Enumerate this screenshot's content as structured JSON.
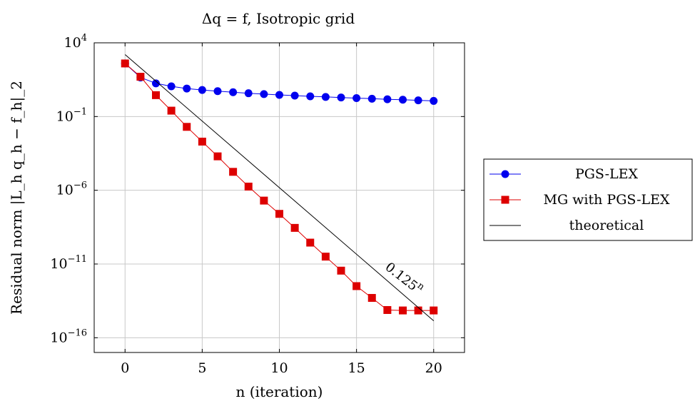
{
  "chart_data": {
    "type": "line",
    "title": "Δq = f, Isotropic grid",
    "xlabel": "n (iteration)",
    "ylabel": "Residual norm |L_h q_h − f_h|_2",
    "y_scale": "log",
    "xlim": [
      -2,
      22
    ],
    "ylim_exponent": [
      -17,
      4
    ],
    "x_ticks": [
      0,
      5,
      10,
      15,
      20
    ],
    "y_ticks_exponent": [
      -16,
      -11,
      -6,
      -1,
      4
    ],
    "y_tick_base": "10",
    "grid": true,
    "legend_position": "outside-right",
    "series": [
      {
        "name": "PGS-LEX",
        "color": "#0000ee",
        "marker": "circle",
        "x": [
          0,
          1,
          2,
          3,
          4,
          5,
          6,
          7,
          8,
          9,
          10,
          11,
          12,
          13,
          14,
          15,
          16,
          17,
          18,
          19,
          20
        ],
        "log10_y": [
          2.6,
          1.65,
          1.25,
          1.05,
          0.9,
          0.8,
          0.72,
          0.65,
          0.58,
          0.52,
          0.47,
          0.42,
          0.37,
          0.33,
          0.29,
          0.25,
          0.21,
          0.17,
          0.14,
          0.1,
          0.06
        ]
      },
      {
        "name": "MG with PGS-LEX",
        "color": "#dd0000",
        "marker": "square",
        "x": [
          0,
          1,
          2,
          3,
          4,
          5,
          6,
          7,
          8,
          9,
          10,
          11,
          12,
          13,
          14,
          15,
          16,
          17,
          18,
          19,
          20
        ],
        "log10_y": [
          2.6,
          1.7,
          0.45,
          -0.6,
          -1.7,
          -2.7,
          -3.7,
          -4.75,
          -5.75,
          -6.7,
          -7.6,
          -8.55,
          -9.55,
          -10.5,
          -11.45,
          -12.5,
          -13.3,
          -14.12,
          -14.15,
          -14.15,
          -14.15
        ]
      },
      {
        "name": "theoretical",
        "color": "#000000",
        "marker": "none",
        "x": [
          0,
          20
        ],
        "log10_y": [
          3.2,
          -14.85
        ]
      }
    ],
    "annotation": {
      "text": "0.125",
      "superscript": "n",
      "x": 17.9,
      "log10_y": -12.2
    }
  }
}
